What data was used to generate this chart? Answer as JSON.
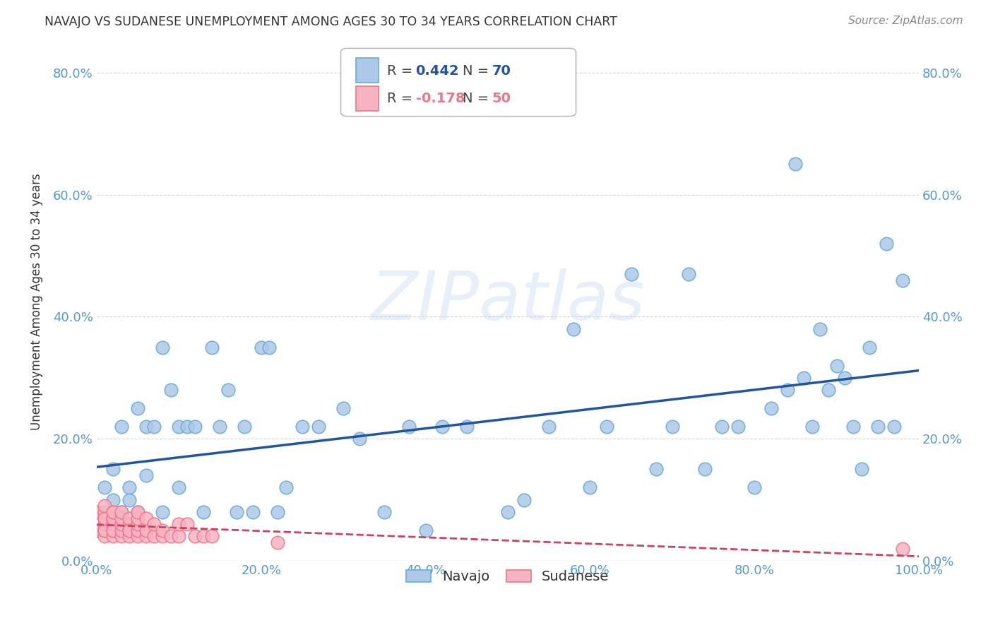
{
  "title": "NAVAJO VS SUDANESE UNEMPLOYMENT AMONG AGES 30 TO 34 YEARS CORRELATION CHART",
  "source": "Source: ZipAtlas.com",
  "ylabel": "Unemployment Among Ages 30 to 34 years",
  "xlim": [
    0.0,
    1.0
  ],
  "ylim": [
    0.0,
    0.85
  ],
  "xticks": [
    0.0,
    0.2,
    0.4,
    0.6,
    0.8,
    1.0
  ],
  "yticks": [
    0.0,
    0.2,
    0.4,
    0.6,
    0.8
  ],
  "xtick_labels": [
    "0.0%",
    "20.0%",
    "40.0%",
    "60.0%",
    "80.0%",
    "100.0%"
  ],
  "ytick_labels": [
    "0.0%",
    "20.0%",
    "40.0%",
    "60.0%",
    "80.0%"
  ],
  "background_color": "#ffffff",
  "navajo_color": "#adc8e8",
  "navajo_edge_color": "#6aaad4",
  "sudanese_color": "#f7b3c2",
  "sudanese_edge_color": "#e8788a",
  "navajo_line_color": "#2255a0",
  "sudanese_line_color": "#d04060",
  "title_color": "#333333",
  "axis_tick_color": "#5599cc",
  "grid_color": "#cccccc",
  "legend_R_color": "#2255a0",
  "legend_R2_color": "#e8788a",
  "navajo_x": [
    0.01,
    0.02,
    0.02,
    0.03,
    0.03,
    0.04,
    0.04,
    0.04,
    0.05,
    0.05,
    0.06,
    0.06,
    0.07,
    0.08,
    0.08,
    0.09,
    0.1,
    0.1,
    0.11,
    0.12,
    0.13,
    0.14,
    0.15,
    0.16,
    0.17,
    0.18,
    0.19,
    0.2,
    0.21,
    0.22,
    0.23,
    0.25,
    0.27,
    0.3,
    0.32,
    0.35,
    0.38,
    0.4,
    0.42,
    0.45,
    0.5,
    0.52,
    0.55,
    0.58,
    0.6,
    0.62,
    0.65,
    0.68,
    0.7,
    0.72,
    0.74,
    0.76,
    0.78,
    0.8,
    0.82,
    0.84,
    0.85,
    0.86,
    0.87,
    0.88,
    0.89,
    0.9,
    0.91,
    0.92,
    0.93,
    0.94,
    0.95,
    0.96,
    0.97,
    0.98
  ],
  "navajo_y": [
    0.12,
    0.1,
    0.15,
    0.22,
    0.08,
    0.12,
    0.06,
    0.1,
    0.25,
    0.08,
    0.22,
    0.14,
    0.22,
    0.35,
    0.08,
    0.28,
    0.22,
    0.12,
    0.22,
    0.22,
    0.08,
    0.35,
    0.22,
    0.28,
    0.08,
    0.22,
    0.08,
    0.35,
    0.35,
    0.08,
    0.12,
    0.22,
    0.22,
    0.25,
    0.2,
    0.08,
    0.22,
    0.05,
    0.22,
    0.22,
    0.08,
    0.1,
    0.22,
    0.38,
    0.12,
    0.22,
    0.47,
    0.15,
    0.22,
    0.47,
    0.15,
    0.22,
    0.22,
    0.12,
    0.25,
    0.28,
    0.65,
    0.3,
    0.22,
    0.38,
    0.28,
    0.32,
    0.3,
    0.22,
    0.15,
    0.35,
    0.22,
    0.52,
    0.22,
    0.46
  ],
  "sudanese_x": [
    0.0,
    0.0,
    0.01,
    0.01,
    0.01,
    0.01,
    0.01,
    0.01,
    0.01,
    0.01,
    0.02,
    0.02,
    0.02,
    0.02,
    0.02,
    0.02,
    0.02,
    0.02,
    0.02,
    0.03,
    0.03,
    0.03,
    0.03,
    0.03,
    0.04,
    0.04,
    0.04,
    0.04,
    0.04,
    0.05,
    0.05,
    0.05,
    0.05,
    0.05,
    0.06,
    0.06,
    0.06,
    0.07,
    0.07,
    0.08,
    0.08,
    0.09,
    0.1,
    0.1,
    0.11,
    0.12,
    0.13,
    0.14,
    0.22,
    0.98
  ],
  "sudanese_y": [
    0.05,
    0.08,
    0.04,
    0.05,
    0.06,
    0.07,
    0.08,
    0.05,
    0.07,
    0.09,
    0.04,
    0.05,
    0.06,
    0.07,
    0.08,
    0.06,
    0.05,
    0.07,
    0.08,
    0.04,
    0.05,
    0.06,
    0.07,
    0.08,
    0.04,
    0.05,
    0.06,
    0.07,
    0.05,
    0.04,
    0.05,
    0.06,
    0.07,
    0.08,
    0.04,
    0.05,
    0.07,
    0.04,
    0.06,
    0.04,
    0.05,
    0.04,
    0.04,
    0.06,
    0.06,
    0.04,
    0.04,
    0.04,
    0.03,
    0.02
  ]
}
